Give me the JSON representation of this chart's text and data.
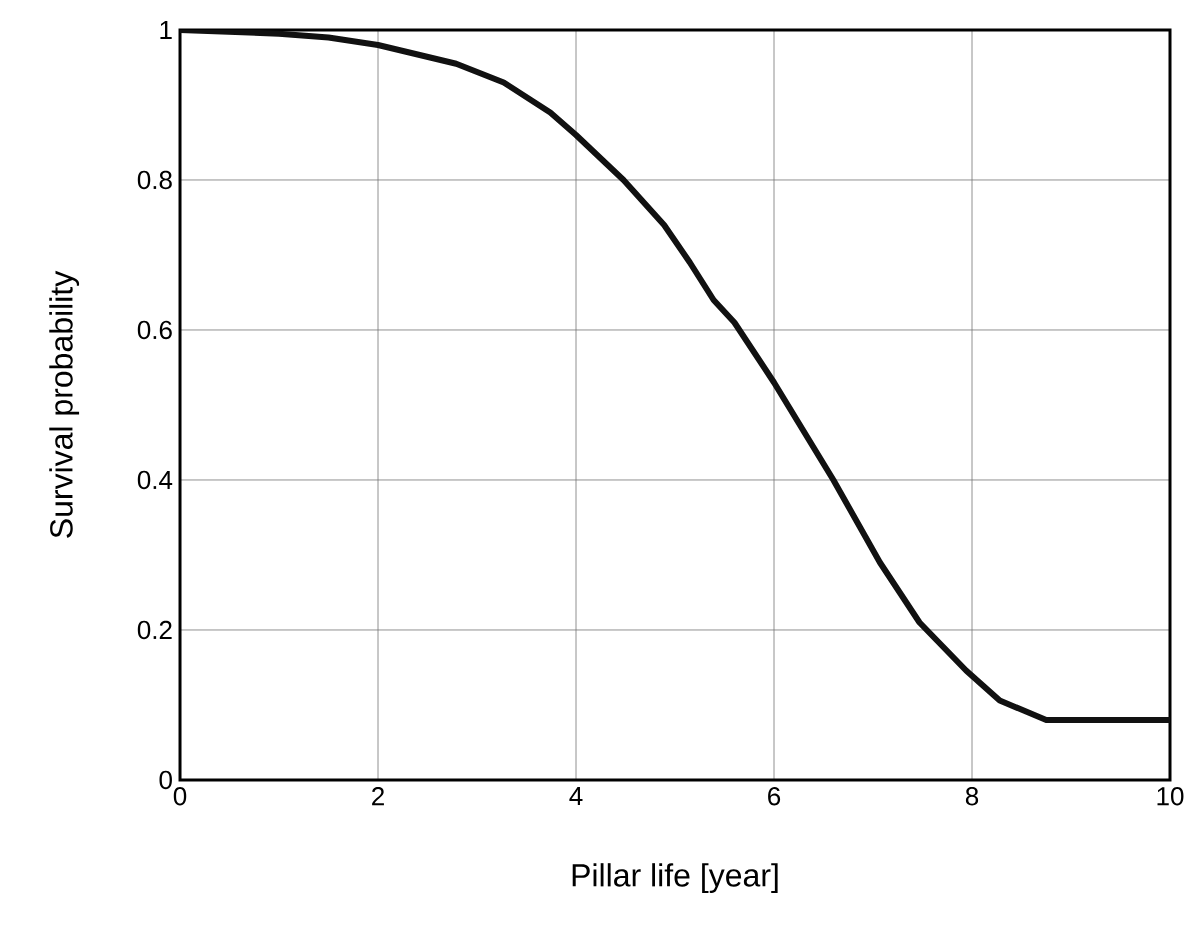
{
  "chart_data": {
    "type": "line",
    "xlabel": "Pillar life [year]",
    "ylabel": "Survival probability",
    "x": [
      0,
      1,
      1.5,
      2,
      2.79,
      3.27,
      3.74,
      4,
      4.48,
      4.89,
      5.15,
      5.39,
      5.6,
      6,
      6.6,
      7.07,
      7.47,
      7.94,
      8.28,
      8.75,
      9,
      10
    ],
    "series": [
      {
        "color": "#111111",
        "values": [
          1.0,
          0.995,
          0.99,
          0.98,
          0.955,
          0.93,
          0.89,
          0.86,
          0.8,
          0.74,
          0.69,
          0.64,
          0.61,
          0.53,
          0.4,
          0.29,
          0.21,
          0.146,
          0.106,
          0.08,
          0.08,
          0.08
        ]
      }
    ],
    "xlim": [
      0,
      10
    ],
    "ylim": [
      0,
      1
    ],
    "xticks": [
      0,
      2,
      4,
      6,
      8,
      10
    ],
    "yticks": [
      0,
      0.2,
      0.4,
      0.6,
      0.8,
      1
    ],
    "grid": true,
    "marker": "none",
    "line_style": "solid"
  }
}
